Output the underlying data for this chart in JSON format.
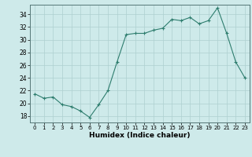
{
  "x": [
    0,
    1,
    2,
    3,
    4,
    5,
    6,
    7,
    8,
    9,
    10,
    11,
    12,
    13,
    14,
    15,
    16,
    17,
    18,
    19,
    20,
    21,
    22,
    23
  ],
  "y": [
    21.5,
    20.8,
    21.0,
    19.8,
    19.5,
    18.8,
    17.8,
    19.8,
    22.0,
    26.5,
    30.8,
    31.0,
    31.0,
    31.5,
    31.8,
    33.2,
    33.0,
    33.5,
    32.5,
    33.0,
    35.0,
    31.0,
    26.5,
    24.0
  ],
  "xlabel": "Humidex (Indice chaleur)",
  "xlim": [
    -0.5,
    23.5
  ],
  "ylim": [
    17,
    35.5
  ],
  "yticks": [
    18,
    20,
    22,
    24,
    26,
    28,
    30,
    32,
    34
  ],
  "xticks": [
    0,
    1,
    2,
    3,
    4,
    5,
    6,
    7,
    8,
    9,
    10,
    11,
    12,
    13,
    14,
    15,
    16,
    17,
    18,
    19,
    20,
    21,
    22,
    23
  ],
  "line_color": "#2e7d6e",
  "marker": "+",
  "bg_color": "#ceeaea",
  "grid_color": "#aed0d0"
}
